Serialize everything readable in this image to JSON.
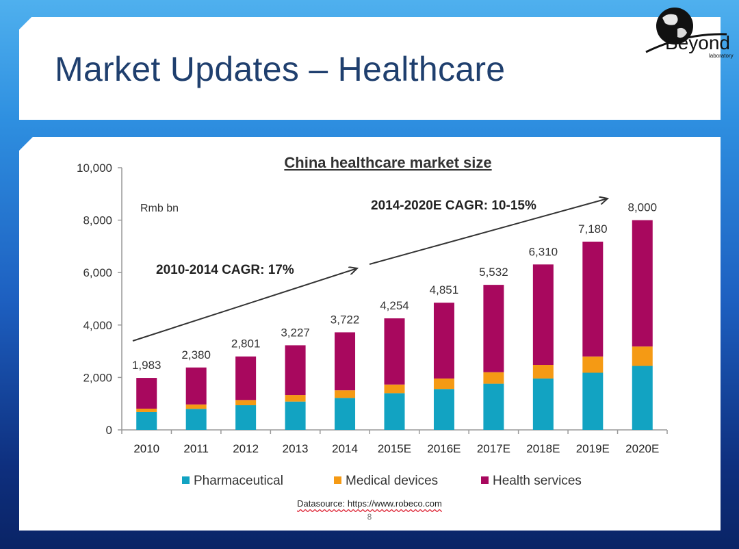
{
  "slide": {
    "title": "Market Updates – Healthcare",
    "logo_text": "Beyond",
    "logo_subtext": "laboratory",
    "source": "Datasource: https://www.robeco.com",
    "page_number": "8"
  },
  "colors": {
    "pharmaceutical": "#12a3c2",
    "medical_devices": "#f59a14",
    "health_services": "#a8085e",
    "title": "#1f3f6e"
  },
  "chart_data": {
    "type": "bar",
    "stacked": true,
    "title": "China healthcare market size",
    "unit_label": "Rmb bn",
    "categories": [
      "2010",
      "2011",
      "2012",
      "2013",
      "2014",
      "2015E",
      "2016E",
      "2017E",
      "2018E",
      "2019E",
      "2020E"
    ],
    "totals": [
      1983,
      2380,
      2801,
      3227,
      3722,
      4254,
      4851,
      5532,
      6310,
      7180,
      8000
    ],
    "total_labels": [
      "1,983",
      "2,380",
      "2,801",
      "3,227",
      "3,722",
      "4,254",
      "4,851",
      "5,532",
      "6,310",
      "7,180",
      "8,000"
    ],
    "series": [
      {
        "name": "Pharmaceutical",
        "values": [
          680,
          800,
          940,
          1080,
          1220,
          1400,
          1560,
          1760,
          1960,
          2180,
          2440
        ]
      },
      {
        "name": "Medical devices",
        "values": [
          130,
          170,
          200,
          250,
          290,
          330,
          400,
          440,
          520,
          620,
          740
        ]
      },
      {
        "name": "Health services",
        "values": [
          1173,
          1410,
          1661,
          1897,
          2212,
          2524,
          2891,
          3332,
          3830,
          4380,
          4820
        ]
      }
    ],
    "ylim": [
      0,
      10000
    ],
    "yticks": [
      0,
      2000,
      4000,
      6000,
      8000,
      10000
    ],
    "ytick_labels": [
      "0",
      "2,000",
      "4,000",
      "6,000",
      "8,000",
      "10,000"
    ],
    "annotations": [
      "2010-2014 CAGR: 17%",
      "2014-2020E CAGR: 10-15%"
    ],
    "legend_position": "bottom",
    "grid": false
  }
}
